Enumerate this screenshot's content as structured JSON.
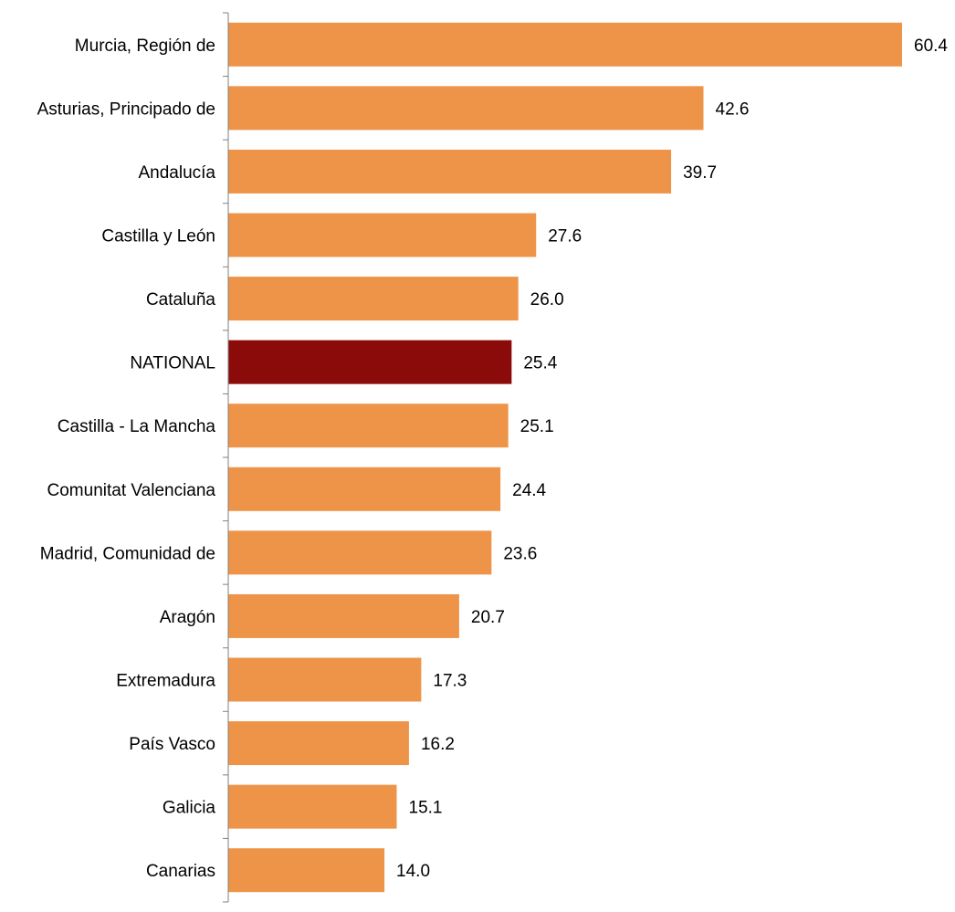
{
  "chart_data": {
    "type": "bar",
    "orientation": "horizontal",
    "title": "",
    "xlabel": "",
    "ylabel": "",
    "categories": [
      "Murcia, Región de",
      "Asturias, Principado de",
      "Andalucía",
      "Castilla y León",
      "Cataluña",
      "NATIONAL",
      "Castilla - La Mancha",
      "Comunitat Valenciana",
      "Madrid, Comunidad de",
      "Aragón",
      "Extremadura",
      "País Vasco",
      "Galicia",
      "Canarias"
    ],
    "values": [
      60.4,
      42.6,
      39.7,
      27.6,
      26.0,
      25.4,
      25.1,
      24.4,
      23.6,
      20.7,
      17.3,
      16.2,
      15.1,
      14.0
    ],
    "value_labels": [
      "60.4",
      "42.6",
      "39.7",
      "27.6",
      "26.0",
      "25.4",
      "25.1",
      "24.4",
      "23.6",
      "20.7",
      "17.3",
      "16.2",
      "15.1",
      "14.0"
    ],
    "highlight_category": "NATIONAL",
    "colors": {
      "bar": "#EE9449",
      "highlight": "#8B0A0A",
      "axis": "#808080",
      "text": "#000000"
    },
    "xlim": [
      0,
      60.4
    ],
    "grid": false,
    "legend": "none"
  }
}
